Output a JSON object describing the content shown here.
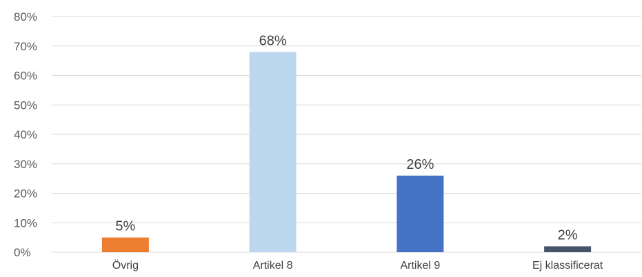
{
  "chart_data": {
    "type": "bar",
    "title": "",
    "xlabel": "",
    "ylabel": "",
    "categories": [
      "Övrig",
      "Artikel 8",
      "Artikel 9",
      "Ej klassificerat"
    ],
    "values": [
      5,
      68,
      26,
      2
    ],
    "value_labels": [
      "5%",
      "68%",
      "26%",
      "2%"
    ],
    "colors": [
      "#ED7D31",
      "#BDD7EE",
      "#4472C4",
      "#44546A"
    ],
    "ylim": [
      0,
      80
    ],
    "yticks": [
      0,
      10,
      20,
      30,
      40,
      50,
      60,
      70,
      80
    ],
    "ytick_labels": [
      "0%",
      "10%",
      "20%",
      "30%",
      "40%",
      "50%",
      "60%",
      "70%",
      "80%"
    ],
    "grid": true,
    "legend": "none"
  }
}
